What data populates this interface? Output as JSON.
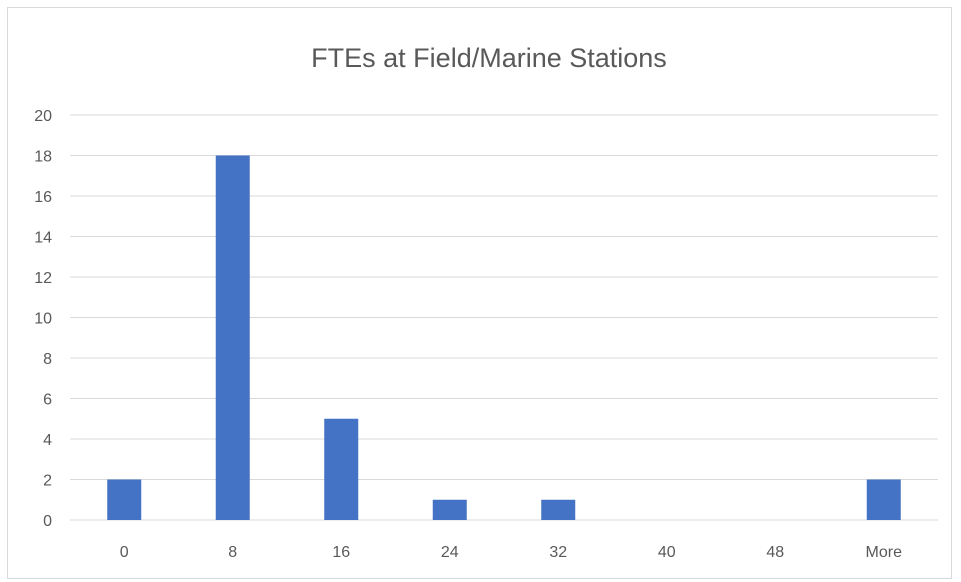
{
  "chart_data": {
    "type": "bar",
    "title": "FTEs at Field/Marine Stations",
    "xlabel": "",
    "ylabel": "",
    "categories": [
      "0",
      "8",
      "16",
      "24",
      "32",
      "40",
      "48",
      "More"
    ],
    "values": [
      2,
      18,
      5,
      1,
      1,
      0,
      0,
      2
    ],
    "ylim": [
      0,
      20
    ],
    "yticks": [
      "0",
      "2",
      "4",
      "6",
      "8",
      "10",
      "12",
      "14",
      "16",
      "18",
      "20"
    ],
    "grid": true,
    "legend": "none",
    "bar_color": "#4472C4",
    "grid_color": "#d9d9d9"
  }
}
